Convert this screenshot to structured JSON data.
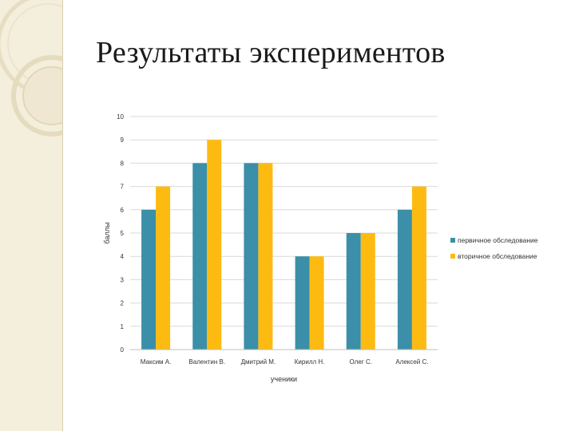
{
  "slide": {
    "title": "Результаты экспериментов"
  },
  "chart_data": {
    "type": "bar",
    "categories": [
      "Максим А.",
      "Валентин В.",
      "Дмитрий М.",
      "Кирилл Н.",
      "Олег С.",
      "Алексей С."
    ],
    "series": [
      {
        "name": "первичное обследование",
        "values": [
          6,
          8,
          8,
          4,
          5,
          6
        ],
        "color": "#3b8fa8"
      },
      {
        "name": "вторичное обследование",
        "values": [
          7,
          9,
          8,
          4,
          5,
          7
        ],
        "color": "#fdbb12"
      }
    ],
    "title": "",
    "xlabel": "ученики",
    "ylabel": "баллы",
    "ylim": [
      0,
      10
    ],
    "yticks": [
      "0",
      "1",
      "2",
      "3",
      "4",
      "5",
      "6",
      "7",
      "8",
      "9",
      "10"
    ],
    "grid": true,
    "legend_position": "right"
  },
  "colors": {
    "side_band": "#f4eedc",
    "ring": "#e6dcc0",
    "gridline": "#d9d9d9"
  }
}
